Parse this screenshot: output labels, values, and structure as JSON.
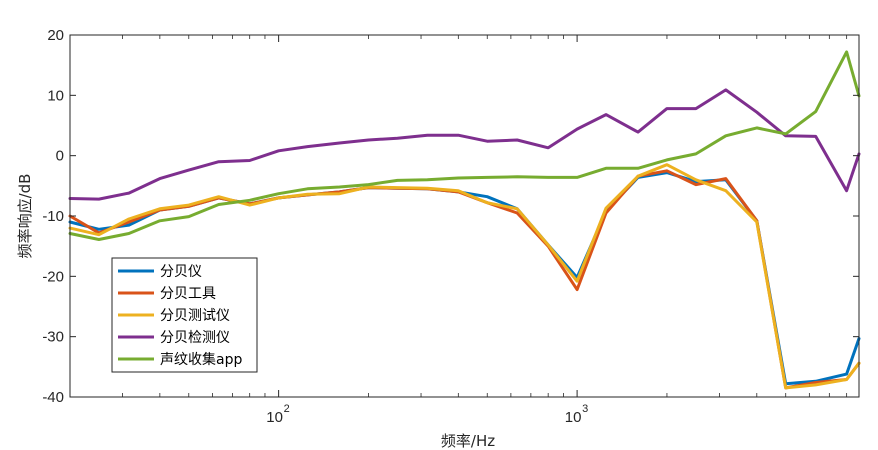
{
  "chart_data": {
    "type": "line",
    "xscale": "log",
    "xlim": [
      20,
      8800
    ],
    "ylim": [
      -40,
      20
    ],
    "xlabel": "频率/Hz",
    "ylabel": "频率响应/dB",
    "grid": false,
    "legend_position": "bottom-left",
    "x_ticks": [
      {
        "value": 100,
        "label": "10",
        "exp": "2"
      },
      {
        "value": 1000,
        "label": "10",
        "exp": "3"
      }
    ],
    "y_ticks": [
      {
        "value": 20,
        "label": "20"
      },
      {
        "value": 10,
        "label": "10"
      },
      {
        "value": 0,
        "label": "0"
      },
      {
        "value": -10,
        "label": "-10"
      },
      {
        "value": -20,
        "label": "-20"
      },
      {
        "value": -30,
        "label": "-30"
      },
      {
        "value": -40,
        "label": "-40"
      }
    ],
    "x": [
      20,
      25,
      31.5,
      40,
      50,
      63,
      80,
      100,
      125,
      160,
      200,
      250,
      315,
      400,
      500,
      630,
      800,
      1000,
      1250,
      1600,
      2000,
      2500,
      3150,
      4000,
      5000,
      6300,
      8000,
      8800
    ],
    "series": [
      {
        "name": "分贝仪",
        "color": "#0072BD",
        "values": [
          -11,
          -12.2,
          -11.5,
          -9,
          -8.4,
          -7,
          -8,
          -7,
          -6.5,
          -6,
          -5.3,
          -5.4,
          -5.5,
          -6,
          -6.8,
          -8.8,
          -14.8,
          -20.2,
          -9.2,
          -3.6,
          -2.8,
          -4.3,
          -4,
          -10.8,
          -37.8,
          -37.4,
          -36.2,
          -30.3
        ]
      },
      {
        "name": "分贝工具",
        "color": "#D95319",
        "values": [
          -10,
          -12.8,
          -11,
          -9,
          -8.4,
          -7,
          -8,
          -7,
          -6.5,
          -6,
          -5.3,
          -5.4,
          -5.5,
          -6,
          -7.8,
          -9.5,
          -15,
          -22.2,
          -9.5,
          -3.4,
          -2.5,
          -4.8,
          -3.8,
          -10.8,
          -38.5,
          -37.6,
          -37.1,
          -34.4
        ]
      },
      {
        "name": "分贝测试仪",
        "color": "#EDB120",
        "values": [
          -12,
          -13.1,
          -10.5,
          -8.8,
          -8.2,
          -6.8,
          -8.2,
          -7,
          -6.4,
          -6.3,
          -5.2,
          -5.3,
          -5.4,
          -5.8,
          -7.8,
          -8.8,
          -14.8,
          -20.8,
          -8.7,
          -3.4,
          -1.5,
          -4,
          -5.8,
          -11,
          -38.5,
          -38,
          -37.1,
          -34.4
        ]
      },
      {
        "name": "分贝检测仪",
        "color": "#7E2F8E",
        "values": [
          -7.1,
          -7.2,
          -6.2,
          -3.8,
          -2.4,
          -1,
          -0.8,
          0.8,
          1.5,
          2.1,
          2.6,
          2.9,
          3.4,
          3.4,
          2.4,
          2.6,
          1.3,
          4.4,
          6.8,
          3.9,
          7.8,
          7.8,
          10.9,
          7.2,
          3.3,
          3.2,
          -5.8,
          0.3
        ]
      },
      {
        "name": "声纹收集app",
        "color": "#77AC30",
        "values": [
          -12.9,
          -13.9,
          -12.9,
          -10.8,
          -10.1,
          -8.1,
          -7.4,
          -6.3,
          -5.5,
          -5.2,
          -4.8,
          -4.1,
          -4,
          -3.7,
          -3.6,
          -3.5,
          -3.6,
          -3.6,
          -2.1,
          -2.1,
          -0.7,
          0.3,
          3.3,
          4.6,
          3.6,
          7.3,
          17.2,
          9.9
        ]
      }
    ]
  }
}
